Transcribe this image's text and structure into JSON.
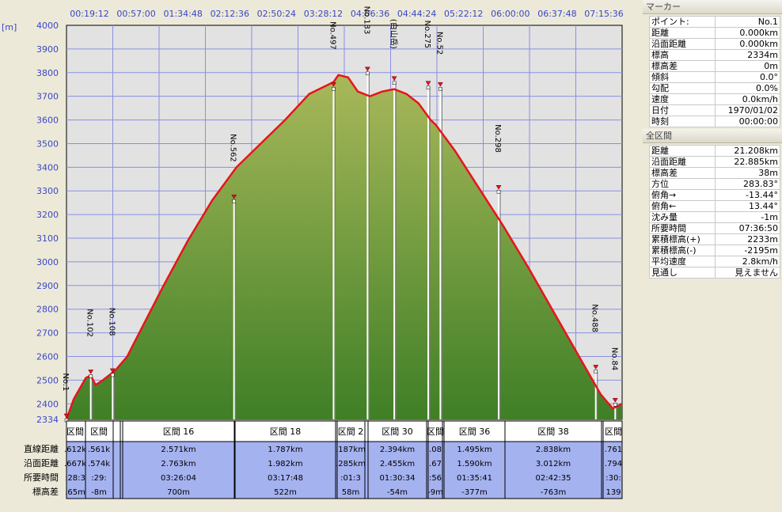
{
  "time_axis": [
    "00:19:12",
    "00:57:00",
    "01:34:48",
    "02:12:36",
    "02:50:24",
    "03:28:12",
    "04:06:36",
    "04:44:24",
    "05:22:12",
    "06:00:00",
    "06:37:48",
    "07:15:36"
  ],
  "unit_label": "[m]",
  "chart_data": {
    "type": "area",
    "title": "",
    "xlabel": "",
    "ylabel": "[m]",
    "ylim": [
      2334,
      4000
    ],
    "yticks": [
      2334,
      2400,
      2500,
      2600,
      2700,
      2800,
      2900,
      3000,
      3100,
      3200,
      3300,
      3400,
      3500,
      3600,
      3700,
      3800,
      3900,
      4000
    ],
    "grid": true,
    "x_domain": [
      0,
      22.885
    ],
    "profile": {
      "x_unit": "km (沿面距離, estimated)",
      "x": [
        0,
        0.3,
        0.8,
        1.0,
        1.2,
        1.5,
        2.0,
        2.5,
        3.0,
        4.0,
        5.0,
        6.0,
        7.0,
        8.0,
        9.0,
        10.0,
        11.0,
        11.2,
        11.6,
        12.0,
        12.5,
        13.0,
        13.5,
        14.0,
        14.5,
        15.0,
        15.2,
        16.0,
        17.0,
        18.0,
        19.0,
        20.0,
        21.0,
        21.5,
        22.0,
        22.5,
        22.885
      ],
      "elevation": [
        2334,
        2420,
        2510,
        2520,
        2480,
        2500,
        2540,
        2600,
        2700,
        2900,
        3090,
        3260,
        3400,
        3500,
        3600,
        3710,
        3760,
        3790,
        3780,
        3720,
        3700,
        3720,
        3730,
        3710,
        3670,
        3600,
        3580,
        3470,
        3310,
        3150,
        2980,
        2800,
        2620,
        2530,
        2440,
        2380,
        2400
      ]
    },
    "markers": [
      {
        "label": "No.1",
        "x": 0,
        "elevation": 2334
      },
      {
        "label": "No.102",
        "x": 1.0,
        "elevation": 2520
      },
      {
        "label": "No.108",
        "x": 1.9,
        "elevation": 2525
      },
      {
        "label": "No.562",
        "x": 6.9,
        "elevation": 3260
      },
      {
        "label": "No.497",
        "x": 11.0,
        "elevation": 3735
      },
      {
        "label": "No.133",
        "x": 12.4,
        "elevation": 3800
      },
      {
        "label": "(白山岳)",
        "x": 13.5,
        "elevation": 3760
      },
      {
        "label": "No.275",
        "x": 14.9,
        "elevation": 3740
      },
      {
        "label": "No.52",
        "x": 15.4,
        "elevation": 3735
      },
      {
        "label": "No.298",
        "x": 17.8,
        "elevation": 3300
      },
      {
        "label": "No.488",
        "x": 21.8,
        "elevation": 2540
      },
      {
        "label": "No.84",
        "x": 22.6,
        "elevation": 2400
      }
    ],
    "segments": [
      {
        "name": "区間 16",
        "直線距離": "2.571km",
        "沿面距離": "2.763km",
        "所要時間": "03:26:04",
        "標高差": "700m"
      },
      {
        "name": "区間 18",
        "直線距離": "1.787km",
        "沿面距離": "1.982km",
        "所要時間": "03:17:48",
        "標高差": "522m"
      },
      {
        "name": "区間 30",
        "直線距離": "2.394km",
        "沿面距離": "2.455km",
        "所要時間": "01:30:34",
        "標高差": "-54m"
      },
      {
        "name": "区間 36",
        "直線距離": "1.495km",
        "沿面距離": "1.590km",
        "所要時間": "01:35:41",
        "標高差": "-377m"
      },
      {
        "name": "区間 38",
        "直線距離": "2.838km",
        "沿面距離": "3.012km",
        "所要時間": "02:42:35",
        "標高差": "-763m"
      }
    ],
    "segment_fragments": {
      "headers": [
        "区間",
        "区間",
        "区間 2",
        "区間",
        "区間"
      ],
      "直線距離": [
        ".612k",
        ".561k",
        ".187km",
        ".08",
        ".761"
      ],
      "沿面距離": [
        ".667k",
        ".574k",
        ".285km",
        ".67",
        ".794"
      ],
      "所要時間": [
        ":28:3",
        ":29:",
        ":01:3",
        ":56",
        ":30:"
      ],
      "標高差": [
        ".65m",
        "-8m",
        "58m",
        "-9m",
        "139"
      ]
    },
    "row_labels": [
      "直線距離",
      "沿面距離",
      "所要時間",
      "標高差"
    ]
  },
  "marker_panel": {
    "title": "マーカー",
    "rows": [
      {
        "k": "ポイント:",
        "v": "No.1"
      },
      {
        "k": "距離",
        "v": "0.000km"
      },
      {
        "k": "沿面距離",
        "v": "0.000km"
      },
      {
        "k": "標高",
        "v": "2334m"
      },
      {
        "k": "標高差",
        "v": "0m"
      },
      {
        "k": "傾斜",
        "v": "0.0°"
      },
      {
        "k": "勾配",
        "v": "0.0%"
      },
      {
        "k": "速度",
        "v": "0.0km/h"
      },
      {
        "k": "日付",
        "v": "1970/01/02"
      },
      {
        "k": "時刻",
        "v": "00:00:00"
      }
    ]
  },
  "total_panel": {
    "title": "全区間",
    "rows": [
      {
        "k": "距離",
        "v": "21.208km"
      },
      {
        "k": "沿面距離",
        "v": "22.885km"
      },
      {
        "k": "標高差",
        "v": "38m"
      },
      {
        "k": "方位",
        "v": "283.83°"
      },
      {
        "k": "俯角→",
        "v": "-13.44°"
      },
      {
        "k": "俯角←",
        "v": "13.44°"
      },
      {
        "k": "沈み量",
        "v": "-1m"
      },
      {
        "k": "所要時間",
        "v": "07:36:50"
      },
      {
        "k": "累積標高(+)",
        "v": "2233m"
      },
      {
        "k": "累積標高(-)",
        "v": "-2195m"
      },
      {
        "k": "平均速度",
        "v": "2.8km/h"
      },
      {
        "k": "見通し",
        "v": "見えません"
      }
    ]
  },
  "colors": {
    "plot_bg": "#e2e2e2",
    "grid": "#8a8fe0",
    "fill_top": "#a8b85a",
    "fill_bottom": "#3f7f26",
    "profile_line": "#e8141a",
    "marker_line": "#ffffff",
    "table_bg": "#a5b2f0",
    "axis_text": "#3a46c8"
  }
}
